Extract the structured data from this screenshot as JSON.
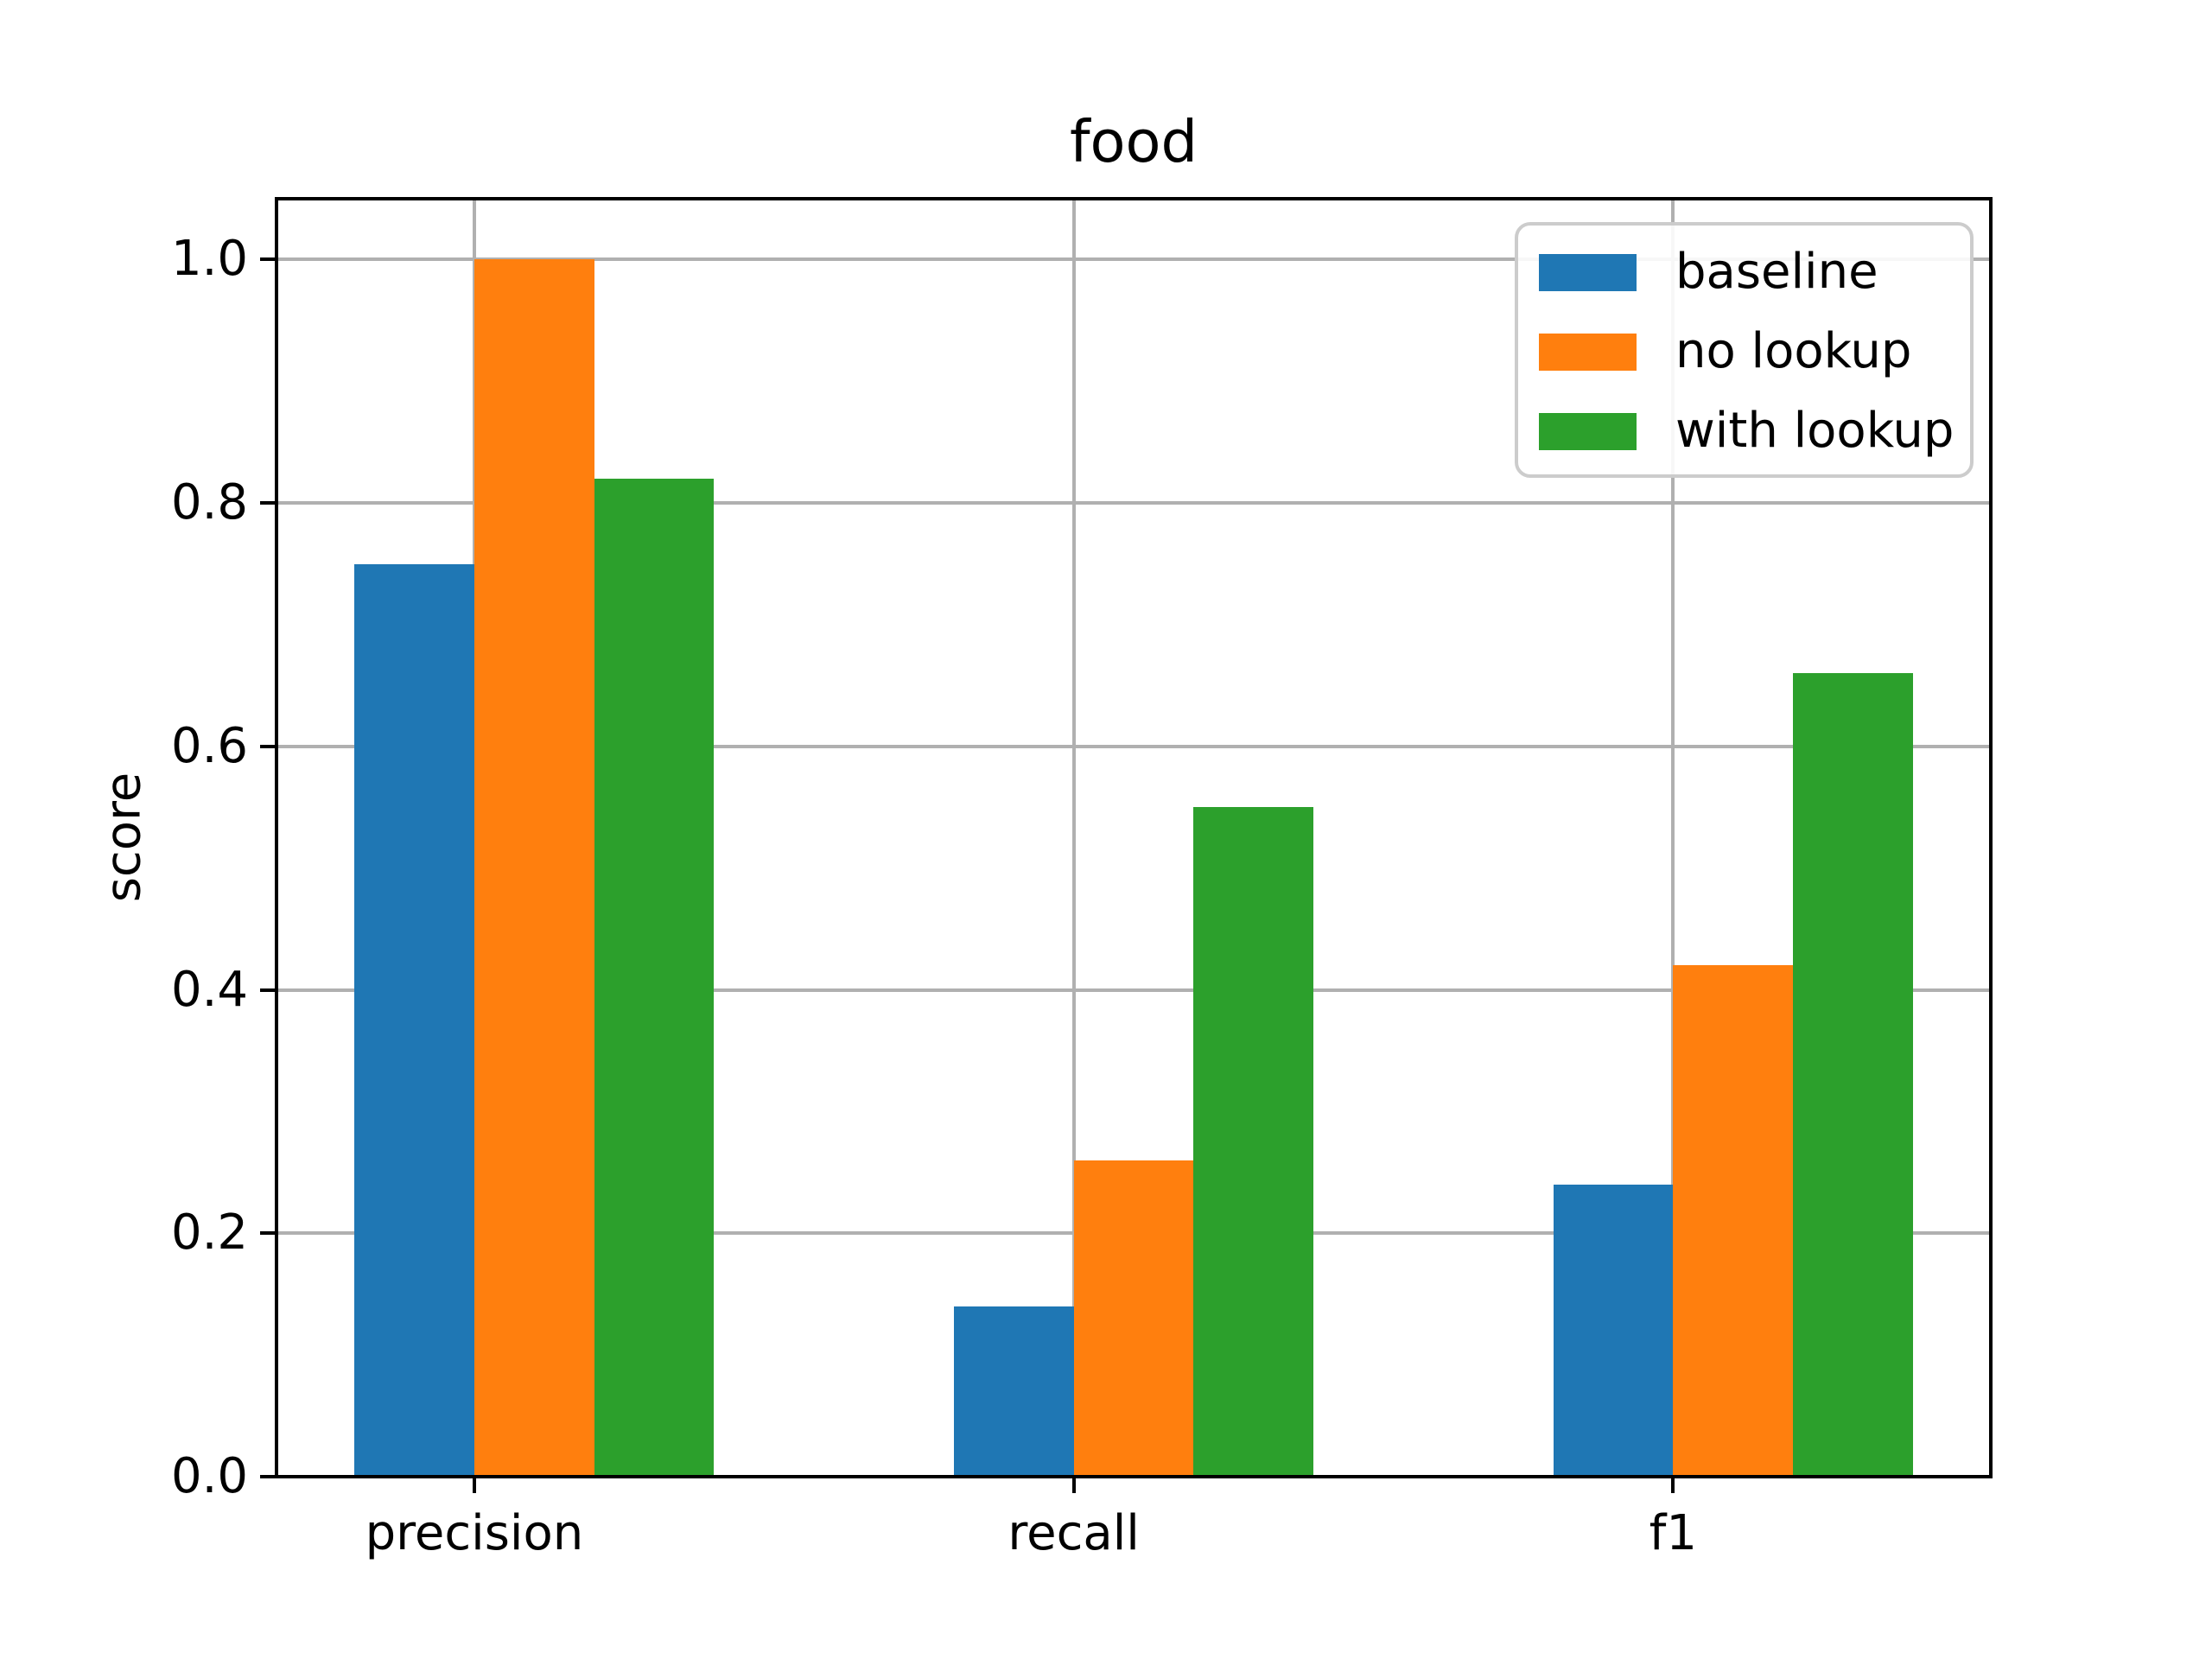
{
  "chart_data": {
    "type": "bar",
    "title": "food",
    "xlabel": "",
    "ylabel": "score",
    "categories": [
      "precision",
      "recall",
      "f1"
    ],
    "series": [
      {
        "name": "baseline",
        "color": "#1f77b4",
        "values": [
          0.75,
          0.14,
          0.24
        ]
      },
      {
        "name": "no lookup",
        "color": "#ff7f0e",
        "values": [
          1.0,
          0.26,
          0.42
        ]
      },
      {
        "name": "with lookup",
        "color": "#2ca02c",
        "values": [
          0.82,
          0.55,
          0.66
        ]
      }
    ],
    "xlim": [
      -0.33,
      2.53
    ],
    "ylim": [
      0,
      1.05
    ],
    "xtick_positions": [
      0,
      1,
      2
    ],
    "yticks": [
      0.0,
      0.2,
      0.4,
      0.6,
      0.8,
      1.0
    ],
    "ytick_labels": [
      "0.0",
      "0.2",
      "0.4",
      "0.6",
      "0.8",
      "1.0"
    ],
    "bar_width": 0.2,
    "bar_left_offsets": [
      -0.2,
      0.0,
      0.2
    ],
    "grid": true,
    "grid_color": "#b0b0b0",
    "axis_color": "#000000",
    "text_color": "#000000",
    "legend": {
      "position": "upper right"
    }
  }
}
